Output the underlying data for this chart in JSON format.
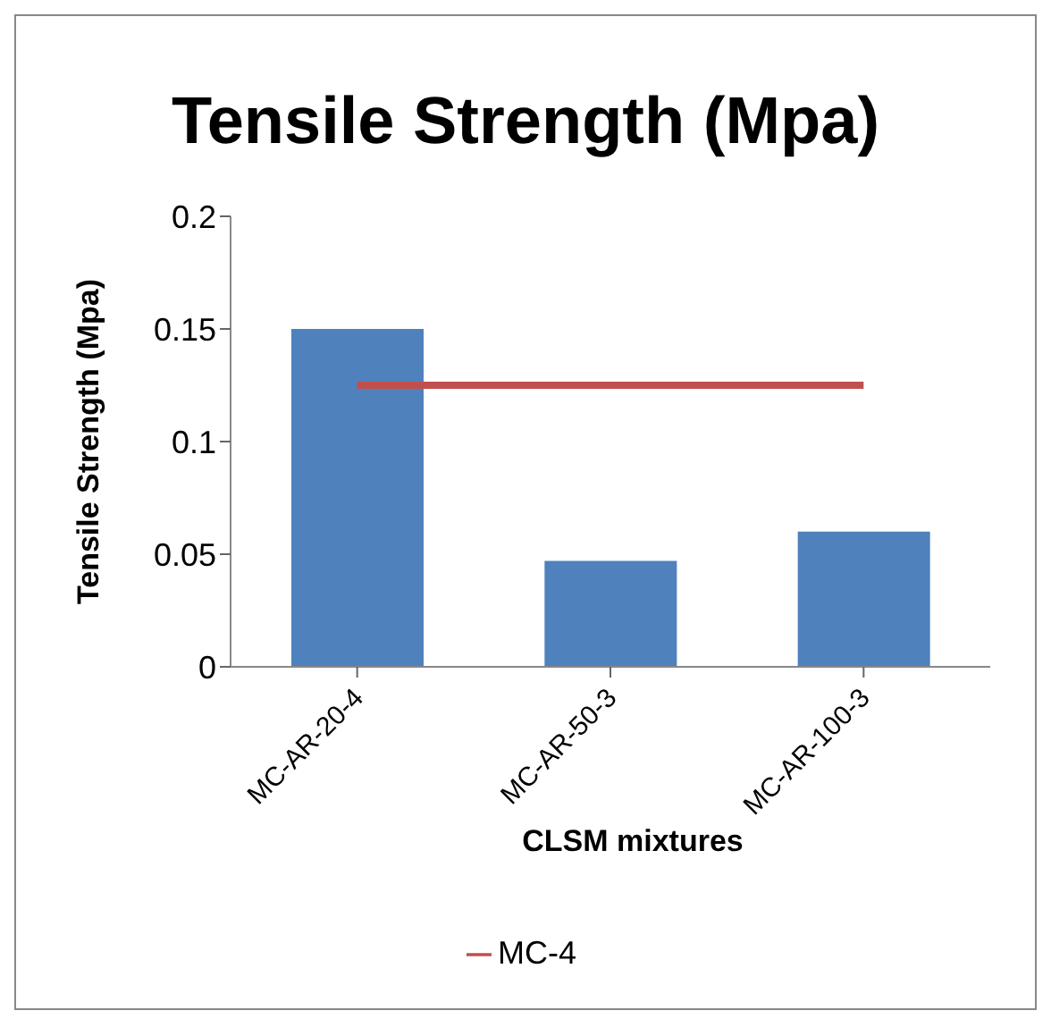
{
  "chart_data": {
    "type": "bar",
    "title": "Tensile Strength (Mpa)",
    "xlabel": "CLSM mixtures",
    "ylabel": "Tensile Strength (Mpa)",
    "categories": [
      "MC-AR-20-4",
      "MC-AR-50-3",
      "MC-AR-100-3"
    ],
    "series": [
      {
        "color": "#4f81bd",
        "values": [
          0.15,
          0.047,
          0.06
        ]
      },
      {
        "type": "line",
        "name": "MC-4",
        "color": "#c0504d",
        "values": [
          0.125,
          0.125,
          0.125
        ]
      }
    ],
    "ylim": [
      0,
      0.2
    ],
    "yticks": [
      0,
      0.05,
      0.1,
      0.15,
      0.2
    ],
    "legend": "bottom"
  }
}
